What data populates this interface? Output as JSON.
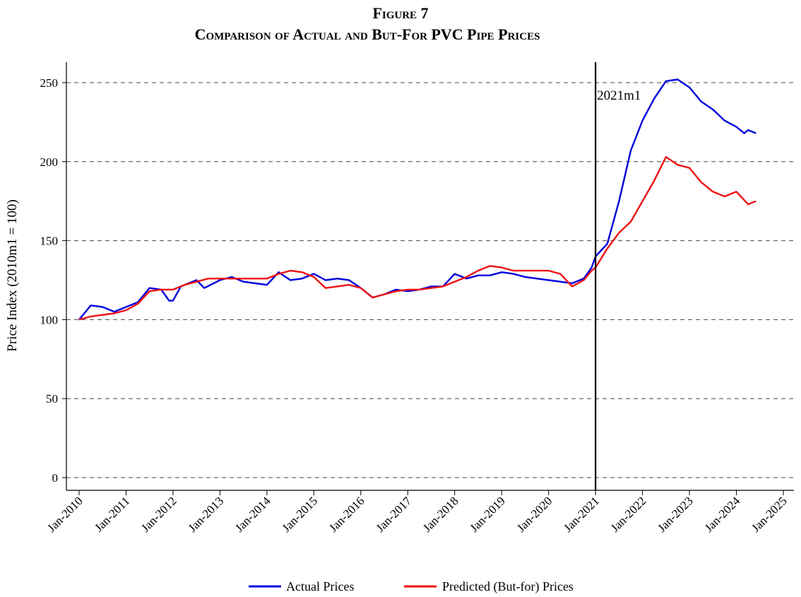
{
  "chart_data": {
    "type": "line",
    "title": "Figure 7",
    "subtitle": "Comparison of Actual and But-For PVC Pipe Prices",
    "xlabel": "",
    "ylabel": "Price Index (2010m1 = 100)",
    "xlim": [
      "2010-01",
      "2025-01"
    ],
    "ylim": [
      0,
      260
    ],
    "x_ticks": [
      "Jan-2010",
      "Jan-2011",
      "Jan-2012",
      "Jan-2013",
      "Jan-2014",
      "Jan-2015",
      "Jan-2016",
      "Jan-2017",
      "Jan-2018",
      "Jan-2019",
      "Jan-2020",
      "Jan-2021",
      "Jan-2022",
      "Jan-2023",
      "Jan-2024",
      "Jan-2025"
    ],
    "y_ticks": [
      0,
      50,
      100,
      150,
      200,
      250
    ],
    "grid": "horizontal dashed",
    "legend_position": "bottom",
    "annotation": {
      "text": "2021m1",
      "x": "2021-01"
    },
    "series": [
      {
        "name": "Actual Prices",
        "color": "#0000dd",
        "points": [
          [
            "2010-01",
            100
          ],
          [
            "2010-04",
            109
          ],
          [
            "2010-07",
            108
          ],
          [
            "2010-09",
            106
          ],
          [
            "2010-10",
            105
          ],
          [
            "2011-01",
            108
          ],
          [
            "2011-04",
            111
          ],
          [
            "2011-07",
            120
          ],
          [
            "2011-10",
            119
          ],
          [
            "2011-12",
            112
          ],
          [
            "2012-01",
            112
          ],
          [
            "2012-03",
            121
          ],
          [
            "2012-07",
            125
          ],
          [
            "2012-09",
            120
          ],
          [
            "2013-01",
            125
          ],
          [
            "2013-04",
            127
          ],
          [
            "2013-07",
            124
          ],
          [
            "2013-10",
            123
          ],
          [
            "2014-01",
            122
          ],
          [
            "2014-04",
            130
          ],
          [
            "2014-07",
            125
          ],
          [
            "2014-10",
            126
          ],
          [
            "2015-01",
            129
          ],
          [
            "2015-04",
            125
          ],
          [
            "2015-07",
            126
          ],
          [
            "2015-10",
            125
          ],
          [
            "2016-01",
            120
          ],
          [
            "2016-04",
            114
          ],
          [
            "2016-07",
            116
          ],
          [
            "2016-10",
            119
          ],
          [
            "2017-01",
            118
          ],
          [
            "2017-04",
            119
          ],
          [
            "2017-07",
            121
          ],
          [
            "2017-10",
            121
          ],
          [
            "2018-01",
            129
          ],
          [
            "2018-04",
            126
          ],
          [
            "2018-07",
            128
          ],
          [
            "2018-10",
            128
          ],
          [
            "2019-01",
            130
          ],
          [
            "2019-04",
            129
          ],
          [
            "2019-07",
            127
          ],
          [
            "2019-10",
            126
          ],
          [
            "2020-01",
            125
          ],
          [
            "2020-04",
            124
          ],
          [
            "2020-07",
            123
          ],
          [
            "2020-10",
            126
          ],
          [
            "2020-12",
            133
          ],
          [
            "2021-01",
            140
          ],
          [
            "2021-04",
            148
          ],
          [
            "2021-07",
            175
          ],
          [
            "2021-10",
            207
          ],
          [
            "2022-01",
            226
          ],
          [
            "2022-04",
            240
          ],
          [
            "2022-07",
            251
          ],
          [
            "2022-10",
            252
          ],
          [
            "2023-01",
            247
          ],
          [
            "2023-04",
            238
          ],
          [
            "2023-07",
            233
          ],
          [
            "2023-10",
            226
          ],
          [
            "2024-01",
            222
          ],
          [
            "2024-03",
            218
          ],
          [
            "2024-04",
            220
          ],
          [
            "2024-06",
            218
          ]
        ]
      },
      {
        "name": "Predicted (But-for) Prices",
        "color": "#ee1111",
        "points": [
          [
            "2010-01",
            100
          ],
          [
            "2010-04",
            102
          ],
          [
            "2010-07",
            103
          ],
          [
            "2010-10",
            104
          ],
          [
            "2011-01",
            106
          ],
          [
            "2011-04",
            110
          ],
          [
            "2011-07",
            118
          ],
          [
            "2011-10",
            119
          ],
          [
            "2012-01",
            119
          ],
          [
            "2012-04",
            122
          ],
          [
            "2012-07",
            124
          ],
          [
            "2012-10",
            126
          ],
          [
            "2013-01",
            126
          ],
          [
            "2013-04",
            126
          ],
          [
            "2013-07",
            126
          ],
          [
            "2013-10",
            126
          ],
          [
            "2014-01",
            126
          ],
          [
            "2014-04",
            129
          ],
          [
            "2014-07",
            131
          ],
          [
            "2014-10",
            130
          ],
          [
            "2015-01",
            127
          ],
          [
            "2015-04",
            120
          ],
          [
            "2015-07",
            121
          ],
          [
            "2015-10",
            122
          ],
          [
            "2016-01",
            120
          ],
          [
            "2016-04",
            114
          ],
          [
            "2016-07",
            116
          ],
          [
            "2016-10",
            118
          ],
          [
            "2017-01",
            119
          ],
          [
            "2017-04",
            119
          ],
          [
            "2017-07",
            120
          ],
          [
            "2017-10",
            121
          ],
          [
            "2018-01",
            124
          ],
          [
            "2018-04",
            127
          ],
          [
            "2018-07",
            131
          ],
          [
            "2018-10",
            134
          ],
          [
            "2019-01",
            133
          ],
          [
            "2019-04",
            131
          ],
          [
            "2019-07",
            131
          ],
          [
            "2019-10",
            131
          ],
          [
            "2020-01",
            131
          ],
          [
            "2020-04",
            129
          ],
          [
            "2020-07",
            121
          ],
          [
            "2020-10",
            125
          ],
          [
            "2020-12",
            131
          ],
          [
            "2021-01",
            133
          ],
          [
            "2021-04",
            145
          ],
          [
            "2021-07",
            155
          ],
          [
            "2021-10",
            162
          ],
          [
            "2022-01",
            175
          ],
          [
            "2022-04",
            188
          ],
          [
            "2022-07",
            203
          ],
          [
            "2022-10",
            198
          ],
          [
            "2023-01",
            196
          ],
          [
            "2023-04",
            187
          ],
          [
            "2023-07",
            181
          ],
          [
            "2023-10",
            178
          ],
          [
            "2024-01",
            181
          ],
          [
            "2024-04",
            173
          ],
          [
            "2024-06",
            175
          ]
        ]
      }
    ]
  }
}
